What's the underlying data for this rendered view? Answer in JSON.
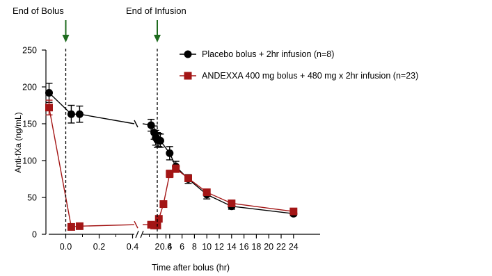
{
  "chart_data": {
    "type": "line",
    "title": "",
    "ylabel": "Anti-fXa (ng/mL)",
    "xlabel": "Time after bolus (hr)",
    "ylim": [
      0,
      250
    ],
    "y_ticks": [
      "0",
      "50",
      "100",
      "150",
      "200",
      "250"
    ],
    "x_ticks_left": [
      "0.0",
      "0.2",
      "0.4",
      "0.6"
    ],
    "x_ticks_right": [
      "2",
      "4",
      "6",
      "8",
      "10",
      "12",
      "14",
      "16",
      "18",
      "20",
      "22",
      "24"
    ],
    "x_segments": [
      {
        "range": [
          -0.1,
          0.65
        ],
        "unit": "hr"
      },
      {
        "range": [
          0.6,
          24.5
        ],
        "unit": "hr"
      }
    ],
    "annotations": {
      "end_of_bolus": {
        "label": "End of Bolus",
        "x": 0.0,
        "arrow_color": "#1e6b1e"
      },
      "end_of_infusion": {
        "label": "End of Infusion",
        "x": 2.0,
        "arrow_color": "#1e6b1e"
      }
    },
    "legend_position": "top-right",
    "series": [
      {
        "name": "Placebo bolus + 2hr infusion (n=8)",
        "color": "#000000",
        "marker": "circle",
        "points_left": [
          {
            "x": -0.1,
            "y": 192,
            "err": 13
          },
          {
            "x": 0.033,
            "y": 163,
            "err": 12
          },
          {
            "x": 0.083,
            "y": 163,
            "err": 11
          }
        ],
        "points_right": [
          {
            "x": 1.0,
            "y": 148,
            "err": 8
          },
          {
            "x": 1.5,
            "y": 138,
            "err": 9
          },
          {
            "x": 1.75,
            "y": 131,
            "err": 10
          },
          {
            "x": 2.0,
            "y": 128,
            "err": 10
          },
          {
            "x": 2.25,
            "y": 128,
            "err": 9
          },
          {
            "x": 2.5,
            "y": 127,
            "err": 9
          },
          {
            "x": 4.0,
            "y": 110,
            "err": 9
          },
          {
            "x": 5.0,
            "y": 92,
            "err": 7
          },
          {
            "x": 7.0,
            "y": 75,
            "err": 6
          },
          {
            "x": 10.0,
            "y": 54,
            "err": 6
          },
          {
            "x": 14.0,
            "y": 38,
            "err": 4
          },
          {
            "x": 24.0,
            "y": 28,
            "err": 3
          }
        ]
      },
      {
        "name": "ANDEXXA 400 mg bolus + 480 mg x 2hr infusion (n=23)",
        "color": "#a31515",
        "marker": "square",
        "points_left": [
          {
            "x": -0.1,
            "y": 172,
            "err": 10
          },
          {
            "x": 0.033,
            "y": 10,
            "err": 2
          },
          {
            "x": 0.083,
            "y": 11,
            "err": 2
          }
        ],
        "points_right": [
          {
            "x": 1.0,
            "y": 13,
            "err": 2
          },
          {
            "x": 1.5,
            "y": 12,
            "err": 2
          },
          {
            "x": 2.0,
            "y": 12,
            "err": 2
          },
          {
            "x": 2.25,
            "y": 21,
            "err": 2
          },
          {
            "x": 3.0,
            "y": 41,
            "err": 3
          },
          {
            "x": 4.0,
            "y": 82,
            "err": 5
          },
          {
            "x": 5.0,
            "y": 89,
            "err": 5
          },
          {
            "x": 7.0,
            "y": 76,
            "err": 4
          },
          {
            "x": 10.0,
            "y": 57,
            "err": 4
          },
          {
            "x": 14.0,
            "y": 42,
            "err": 3
          },
          {
            "x": 24.0,
            "y": 31,
            "err": 2
          }
        ]
      }
    ]
  }
}
